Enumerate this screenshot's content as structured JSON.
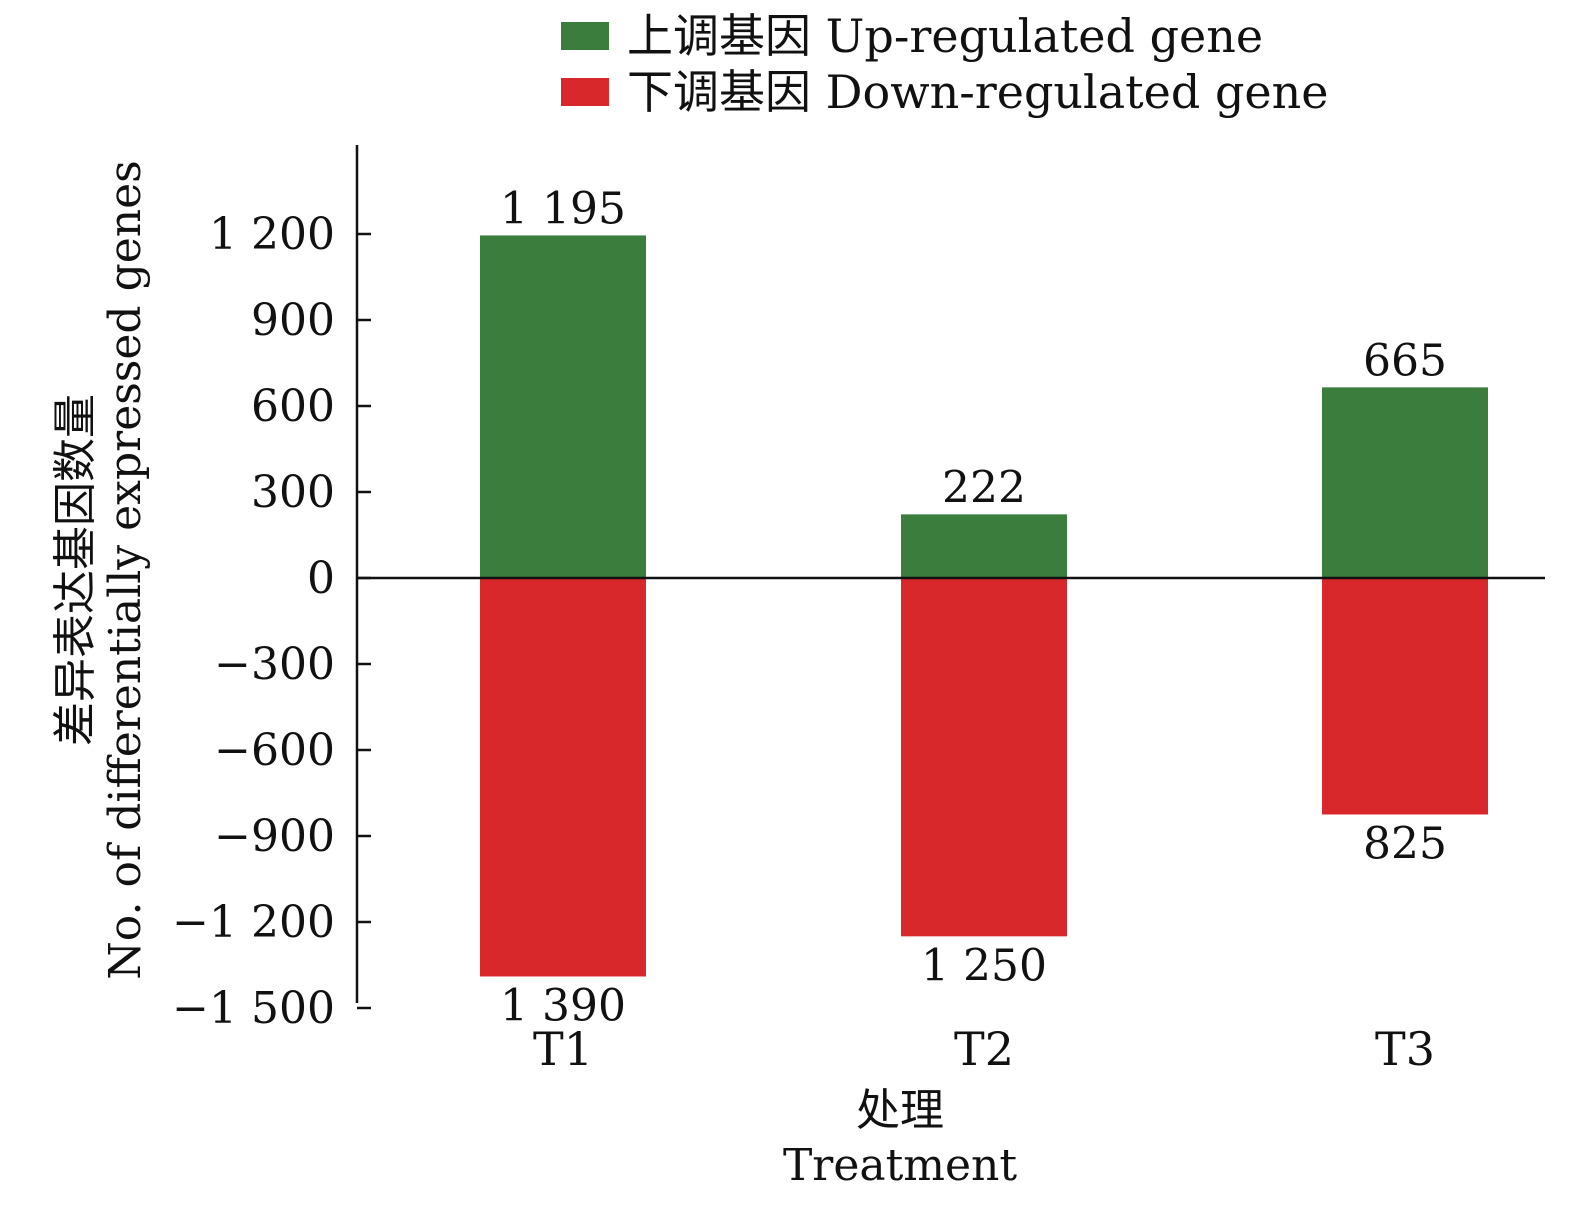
{
  "chart_data": {
    "type": "bar",
    "categories": [
      "T1",
      "T2",
      "T3"
    ],
    "series": [
      {
        "name": "上调基因 Up-regulated gene",
        "values": [
          1195,
          222,
          665
        ],
        "labels": [
          "1 195",
          "222",
          "665"
        ],
        "color": "#3a7d3c"
      },
      {
        "name": "下调基因 Down-regulated gene",
        "values": [
          -1390,
          -1250,
          -825
        ],
        "labels": [
          "1 390",
          "1 250",
          "825"
        ],
        "color": "#d9282c"
      }
    ],
    "yticks": [
      1200,
      900,
      600,
      300,
      0,
      -300,
      -600,
      -900,
      -1200,
      -1500
    ],
    "ytick_labels": [
      "1 200",
      "900",
      "600",
      "300",
      "0",
      "−300",
      "−600",
      "−900",
      "−1 200",
      "−1 500"
    ],
    "ylim": [
      -1500,
      1500
    ],
    "ylabel_cn": "差异表达基因数量",
    "ylabel_en": "No. of differentially expressed genes",
    "xlabel_cn": "处理",
    "xlabel_en": "Treatment",
    "legend_position": "top"
  }
}
